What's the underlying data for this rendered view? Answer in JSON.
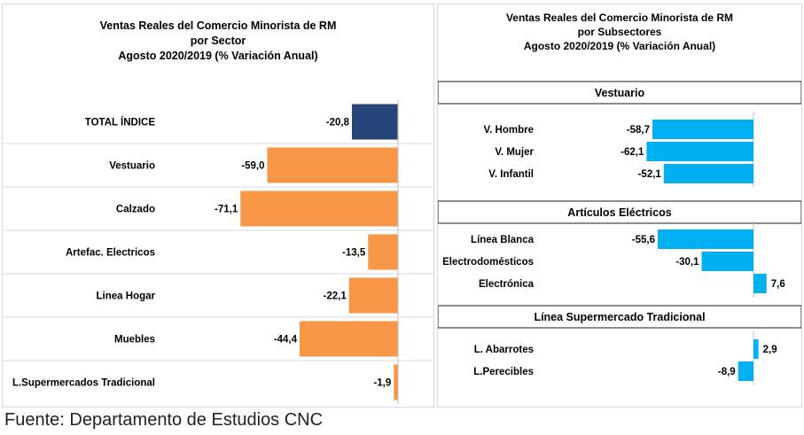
{
  "footer": "Fuente: Departamento de Estudios CNC",
  "chart_data": [
    {
      "type": "bar",
      "orientation": "horizontal",
      "title_lines": [
        "Ventas Reales del Comercio Minorista de RM",
        "por Sector",
        "Agosto 2020/2019 (% Variación Anual)"
      ],
      "categories": [
        "TOTAL ÍNDICE",
        "Vestuario",
        "Calzado",
        "Artefac. Electricos",
        "Linea Hogar",
        "Muebles",
        "L.Supermercados Tradicional"
      ],
      "values": [
        -20.8,
        -59.0,
        -71.1,
        -13.5,
        -22.1,
        -44.4,
        -1.9
      ],
      "value_labels": [
        "-20,8",
        "-59,0",
        "-71,1",
        "-13,5",
        "-22,1",
        "-44,4",
        "-1,9"
      ],
      "colors": [
        "#264478",
        "#f79646",
        "#f79646",
        "#f79646",
        "#f79646",
        "#f79646",
        "#f79646"
      ],
      "xlim": [
        -80,
        0
      ]
    },
    {
      "type": "bar",
      "orientation": "horizontal",
      "title_lines": [
        "Ventas Reales del Comercio Minorista de RM",
        "por Subsectores",
        "Agosto 2020/2019 (% Variación Anual)"
      ],
      "bar_color": "#00b0f0",
      "xlim": [
        -70,
        10
      ],
      "groups": [
        {
          "name": "Vestuario",
          "categories": [
            "V. Hombre",
            "V. Mujer",
            "V. Infantil"
          ],
          "values": [
            -58.7,
            -62.1,
            -52.1
          ],
          "value_labels": [
            "-58,7",
            "-62,1",
            "-52,1"
          ]
        },
        {
          "name": "Artículos Eléctricos",
          "categories": [
            "Línea Blanca",
            "Electrodomésticos",
            "Electrónica"
          ],
          "values": [
            -55.6,
            -30.1,
            7.6
          ],
          "value_labels": [
            "-55,6",
            "-30,1",
            "7,6"
          ]
        },
        {
          "name": "Línea Supermercado Tradicional",
          "categories": [
            "L. Abarrotes",
            "L.Perecibles"
          ],
          "values": [
            2.9,
            -8.9
          ],
          "value_labels": [
            "2,9",
            "-8,9"
          ]
        }
      ]
    }
  ]
}
